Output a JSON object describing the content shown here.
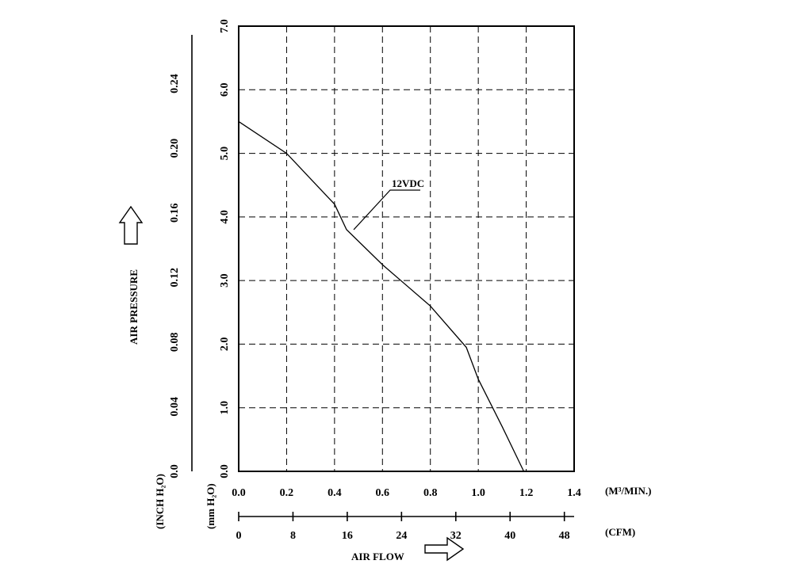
{
  "chart_data": {
    "type": "line",
    "title": "",
    "xlabel": "AIR FLOW",
    "ylabel": "AIR PRESSURE",
    "x_unit_primary": "(M³/MIN.)",
    "x_unit_secondary": "(CFM)",
    "y_unit_primary": "(mm H₂O)",
    "y_unit_secondary": "(INCH H₂O)",
    "xlim": [
      0,
      1.4
    ],
    "ylim": [
      0,
      7
    ],
    "grid": true,
    "x_ticks": [
      "0.0",
      "0.2",
      "0.4",
      "0.6",
      "0.8",
      "1.0",
      "1.2",
      "1.4"
    ],
    "cfm_ticks": [
      "0",
      "8",
      "16",
      "24",
      "32",
      "40",
      "48"
    ],
    "cfm_per_m3min": 35.3147,
    "y_ticks_mm": [
      "0.0",
      "1.0",
      "2.0",
      "3.0",
      "4.0",
      "5.0",
      "6.0",
      "7.0"
    ],
    "y_ticks_inch": [
      "0.0",
      "0.04",
      "0.08",
      "0.12",
      "0.16",
      "0.20",
      "0.24"
    ],
    "inch_per_mm": 0.03937,
    "series": [
      {
        "name": "12VDC",
        "x": [
          0.0,
          0.2,
          0.4,
          0.45,
          0.6,
          0.8,
          0.95,
          1.0,
          1.1,
          1.19
        ],
        "y": [
          5.5,
          5.0,
          4.2,
          3.8,
          3.25,
          2.6,
          1.95,
          1.45,
          0.7,
          0.0
        ]
      }
    ],
    "annotation": {
      "text": "12VDC",
      "point_x": 0.48,
      "point_y": 3.8
    }
  }
}
